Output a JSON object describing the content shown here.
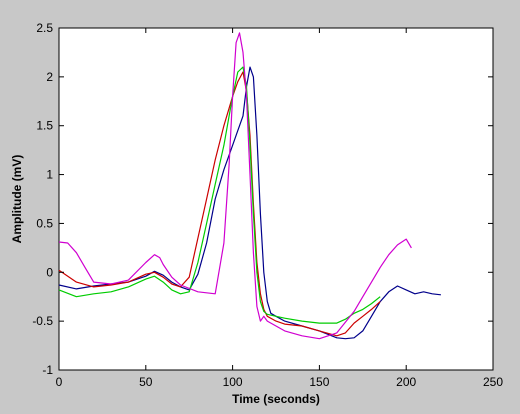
{
  "chart_data": {
    "type": "line",
    "title": "",
    "xlabel": "Time (seconds)",
    "ylabel": "Amplitude (mV)",
    "xlim": [
      0,
      250
    ],
    "ylim": [
      -1,
      2.5
    ],
    "xticks": [
      0,
      50,
      100,
      150,
      200,
      250
    ],
    "yticks": [
      -1,
      -0.5,
      0,
      0.5,
      1,
      1.5,
      2,
      2.5
    ],
    "xtick_labels": [
      "0",
      "50",
      "100",
      "150",
      "200",
      "250"
    ],
    "ytick_labels": [
      "-1",
      "-0.5",
      "0",
      "0.5",
      "1",
      "1.5",
      "2",
      "2.5"
    ],
    "grid": false,
    "legend": "none",
    "background_color": "#c8c8c8",
    "plot_area_color": "#ffffff",
    "series": [
      {
        "color": "#00008b",
        "x": [
          0,
          10,
          20,
          30,
          40,
          50,
          55,
          60,
          65,
          70,
          75,
          80,
          85,
          90,
          95,
          100,
          103,
          106,
          108,
          110,
          112,
          114,
          116,
          118,
          120,
          122,
          125,
          130,
          140,
          150,
          160,
          165,
          170,
          175,
          180,
          185,
          190,
          195,
          200,
          205,
          210,
          215,
          220
        ],
        "y": [
          -0.13,
          -0.17,
          -0.14,
          -0.12,
          -0.1,
          -0.04,
          0.01,
          -0.03,
          -0.1,
          -0.15,
          -0.18,
          -0.02,
          0.3,
          0.75,
          1.05,
          1.3,
          1.45,
          1.6,
          1.9,
          2.1,
          2.0,
          1.4,
          0.6,
          0.0,
          -0.3,
          -0.42,
          -0.45,
          -0.5,
          -0.55,
          -0.6,
          -0.67,
          -0.68,
          -0.67,
          -0.6,
          -0.45,
          -0.3,
          -0.2,
          -0.14,
          -0.18,
          -0.22,
          -0.2,
          -0.22,
          -0.23
        ]
      },
      {
        "color": "#cc0000",
        "x": [
          0,
          10,
          20,
          30,
          40,
          50,
          55,
          60,
          65,
          70,
          75,
          80,
          85,
          90,
          95,
          100,
          103,
          106,
          108,
          110,
          112,
          114,
          116,
          118,
          120,
          125,
          130,
          140,
          150,
          160,
          165,
          170,
          175,
          180,
          185
        ],
        "y": [
          0.02,
          -0.1,
          -0.15,
          -0.13,
          -0.1,
          -0.02,
          0.0,
          -0.05,
          -0.12,
          -0.15,
          -0.05,
          0.35,
          0.75,
          1.15,
          1.5,
          1.8,
          1.95,
          2.05,
          1.85,
          1.4,
          0.7,
          0.1,
          -0.22,
          -0.38,
          -0.45,
          -0.5,
          -0.53,
          -0.55,
          -0.6,
          -0.65,
          -0.62,
          -0.52,
          -0.45,
          -0.38,
          -0.3
        ]
      },
      {
        "color": "#00cc00",
        "x": [
          0,
          10,
          20,
          30,
          40,
          50,
          55,
          60,
          65,
          70,
          75,
          80,
          85,
          90,
          95,
          100,
          103,
          106,
          108,
          110,
          112,
          114,
          116,
          118,
          120,
          125,
          130,
          140,
          150,
          160,
          165,
          170,
          175,
          180,
          185
        ],
        "y": [
          -0.18,
          -0.25,
          -0.22,
          -0.2,
          -0.15,
          -0.07,
          -0.04,
          -0.1,
          -0.18,
          -0.22,
          -0.2,
          0.1,
          0.5,
          0.9,
          1.3,
          1.8,
          2.05,
          2.1,
          1.9,
          1.3,
          0.6,
          0.0,
          -0.3,
          -0.4,
          -0.43,
          -0.45,
          -0.47,
          -0.5,
          -0.52,
          -0.52,
          -0.48,
          -0.42,
          -0.38,
          -0.32,
          -0.25
        ]
      },
      {
        "color": "#d000d0",
        "x": [
          0,
          5,
          10,
          15,
          20,
          30,
          40,
          50,
          55,
          58,
          60,
          65,
          70,
          80,
          90,
          95,
          98,
          100,
          102,
          104,
          106,
          108,
          110,
          112,
          114,
          116,
          118,
          120,
          125,
          130,
          140,
          150,
          160,
          170,
          175,
          180,
          185,
          190,
          195,
          200,
          203
        ],
        "y": [
          0.31,
          0.3,
          0.2,
          0.05,
          -0.1,
          -0.12,
          -0.08,
          0.1,
          0.18,
          0.15,
          0.08,
          -0.05,
          -0.13,
          -0.2,
          -0.22,
          0.3,
          1.1,
          1.8,
          2.35,
          2.45,
          2.25,
          1.8,
          1.0,
          0.2,
          -0.35,
          -0.5,
          -0.45,
          -0.5,
          -0.55,
          -0.6,
          -0.65,
          -0.68,
          -0.62,
          -0.4,
          -0.25,
          -0.1,
          0.05,
          0.18,
          0.28,
          0.34,
          0.25
        ]
      }
    ]
  }
}
